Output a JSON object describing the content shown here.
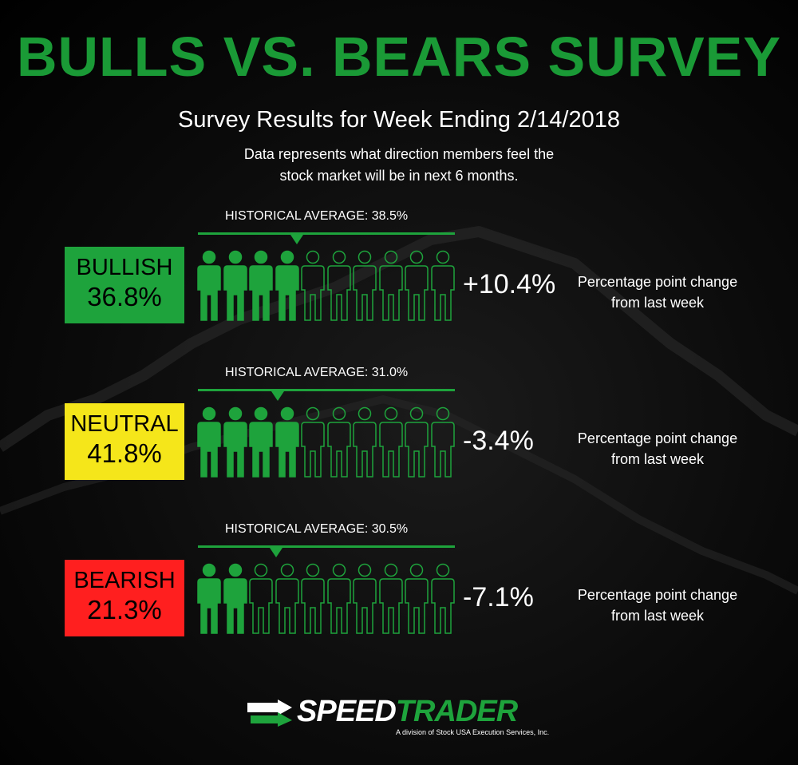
{
  "title": "BULLS VS. BEARS SURVEY",
  "subtitle": "Survey Results for Week Ending 2/14/2018",
  "description_line1": "Data represents what direction members feel the",
  "description_line2": "stock market will be in next 6 months.",
  "colors": {
    "title_green": "#1a9a36",
    "bullish": "#1ea33c",
    "neutral": "#f5e61a",
    "bearish": "#ff1f1f",
    "figure_green": "#1ea33c"
  },
  "rows": [
    {
      "key": "bullish",
      "label": "BULLISH",
      "value": "36.8%",
      "historical_label": "HISTORICAL AVERAGE:  38.5%",
      "historical_average": 38.5,
      "filled_figures": 4,
      "total_figures": 10,
      "change": "+10.4%",
      "change_note_line1": "Percentage point change",
      "change_note_line2": "from last week"
    },
    {
      "key": "neutral",
      "label": "NEUTRAL",
      "value": "41.8%",
      "historical_label": "HISTORICAL AVERAGE:  31.0%",
      "historical_average": 31.0,
      "filled_figures": 4,
      "total_figures": 10,
      "change": "-3.4%",
      "change_note_line1": "Percentage point change",
      "change_note_line2": "from last week"
    },
    {
      "key": "bearish",
      "label": "BEARISH",
      "value": "21.3%",
      "historical_label": "HISTORICAL AVERAGE:  30.5%",
      "historical_average": 30.5,
      "filled_figures": 2,
      "total_figures": 10,
      "change": "-7.1%",
      "change_note_line1": "Percentage point change",
      "change_note_line2": "from last week"
    }
  ],
  "logo": {
    "name_part1": "SPEED",
    "name_part2": "TRADER",
    "tagline": "A division of Stock USA Execution Services, Inc."
  }
}
